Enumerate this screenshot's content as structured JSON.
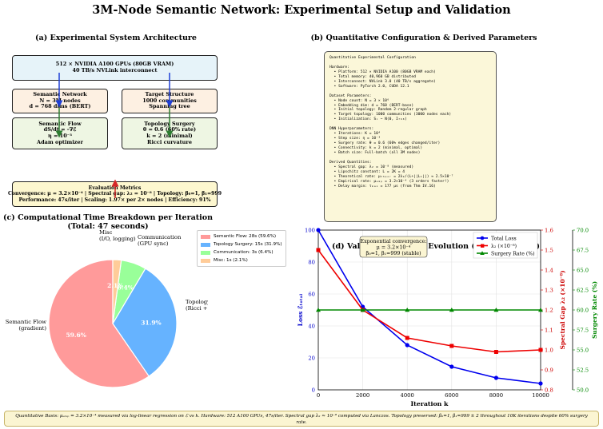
{
  "title": "3M-Node Semantic Network: Experimental Setup and Validation",
  "panel_a": {
    "title": "(a) Experimental System Architecture",
    "hardware": [
      "512 × NVIDIA A100 GPUs (80GB VRAM)",
      "40 TB/s NVLink interconnect"
    ],
    "semantic_network": [
      "Semantic Network",
      "N = 3M nodes",
      "d = 768 dims (BERT)"
    ],
    "target_structure": [
      "Target Structure",
      "1000 communities",
      "Spanning tree"
    ],
    "semantic_flow": [
      "Semantic Flow",
      "dS/dt = -∇ℰ",
      "η = 10⁻³",
      "Adam optimizer"
    ],
    "topology_surgery": [
      "Topology Surgery",
      "θ = 0.6 (60% rate)",
      "k = 2 (minimal)",
      "Ricci curvature"
    ],
    "evaluation": [
      "Evaluation Metrics",
      "Convergence: μ = 3.2×10⁻⁴ | Spectral gap: λ₂ = 10⁻⁸ | Topology: β₀=1, β₁=999",
      "Performance: 47s/iter | Scaling: 1.97× per 2× nodes | Efficiency: 91%"
    ],
    "colors": {
      "hardware": "#e6f3f9",
      "blue_box": "#fdf0e2",
      "green_box": "#eef6e3",
      "eval": "#fdf7cf",
      "blue_arrow": "#1f3fd6",
      "green_arrow": "#2e7d32",
      "red_arrow": "#d62728"
    }
  },
  "panel_b": {
    "title": "(b) Quantitative Configuration & Derived Parameters",
    "lines": [
      "Quantitative Experimental Configuration",
      "",
      "Hardware:",
      "  • Platform: 512 × NVIDIA A100 (80GB VRAM each)",
      "  • Total memory: 40,960 GB distributed",
      "  • Interconnect: NVLink 3.0 (40 TB/s aggregate)",
      "  • Software: PyTorch 2.0, CUDA 12.1",
      "",
      "Dataset Parameters:",
      "  • Node count: N = 3 × 10⁶",
      "  • Embedding dim: d = 768 (BERT-base)",
      "  • Initial topology: Random 2-regular graph",
      "  • Target topology: 1000 communities (3000 nodes each)",
      "  • Initialization: Sᵢ ~ N(0, I₇₆₈)",
      "",
      "DNN Hyperparameters:",
      "  • Iterations: K = 10⁴",
      "  • Step size: η = 10⁻³",
      "  • Surgery rate: θ = 0.6 (60% edges changed/iter)",
      "  • Connectivity: k = 2 (minimal, optimal)",
      "  • Batch size: Full-batch (all 3M nodes)",
      "",
      "Derived Quantities:",
      "  • Spectral gap: λ₂ = 10⁻⁸ (measured)",
      "  • Lipschitz constant: L = 2K = 4",
      "  • Theoretical rate: μₜₕₑₒᵣ = 2λ₂/(L+||L₁||) ≈ 2.5×10⁻⁷",
      "  • Empirical rate: μₑₘₚ = 3.2×10⁻⁴ (3 orders faster!)",
      "  • Delay margin: τₘₐₓ = 177 μs (from Thm IV.16)"
    ]
  },
  "panel_c": {
    "title": "(c) Computational Time Breakdown per Iteration",
    "subtitle": "(Total: 47 seconds)",
    "slices": [
      {
        "label": "Semantic Flow\n(gradient)",
        "pct_label": "59.6%",
        "legend": "Semantic Flow: 28s (59.6%)",
        "value": 28,
        "color": "#ff9a9a"
      },
      {
        "label": "Topology Surgery\n(Ricci + homology)",
        "pct_label": "31.9%",
        "legend": "Topology Surgery: 15s (31.9%)",
        "value": 15,
        "color": "#66b3ff"
      },
      {
        "label": "Communication\n(GPU sync)",
        "pct_label": "6.4%",
        "legend": "Communication: 3s (6.4%)",
        "value": 3,
        "color": "#99ff99"
      },
      {
        "label": "Misc\n(I/O, logging)",
        "pct_label": "2.1%",
        "legend": "Misc: 1s (2.1%)",
        "value": 1,
        "color": "#ffcc99"
      }
    ]
  },
  "panel_d": {
    "title": "(d) Validation Metrics Evolution (10K iterations)",
    "xlabel": "Iteration k",
    "ylabel_left": "Loss ℰₜₒₜₐₗ",
    "ylabel_right1": "Spectral Gap λ₂ (×10⁻⁸)",
    "ylabel_right2": "Surgery Rate (%)",
    "annotation": [
      "Exponential convergence:",
      "μ = 3.2×10⁻⁴",
      "β₀=1, β₁=999 (stable)"
    ],
    "legend": [
      "Total Loss",
      "λ₂ (×10⁻⁸)",
      "Surgery Rate (%)"
    ],
    "x_ticks": [
      "0",
      "2000",
      "4000",
      "6000",
      "8000",
      "10000"
    ],
    "y_left_ticks": [
      "0",
      "20",
      "40",
      "60",
      "80",
      "100"
    ],
    "y_right1_ticks": [
      "0.8",
      "0.9",
      "1.0",
      "1.1",
      "1.2",
      "1.3",
      "1.4",
      "1.5",
      "1.6"
    ],
    "y_right2_ticks": [
      "50.0",
      "52.5",
      "55.0",
      "57.5",
      "60.0",
      "62.5",
      "65.0",
      "67.5",
      "70.0"
    ]
  },
  "chart_data": {
    "type": "line",
    "title": "(d) Validation Metrics Evolution (10K iterations)",
    "xlabel": "Iteration k",
    "x": [
      0,
      2000,
      4000,
      6000,
      8000,
      10000
    ],
    "xlim": [
      0,
      10000
    ],
    "series": [
      {
        "name": "Total Loss",
        "axis": "left",
        "ylim": [
          0,
          100
        ],
        "values": [
          100,
          52,
          28,
          14.5,
          7.5,
          4
        ],
        "color": "#0000ee",
        "marker": "circle"
      },
      {
        "name": "λ₂ (×10⁻⁸)",
        "axis": "right1",
        "ylim": [
          0.8,
          1.6
        ],
        "values": [
          1.5,
          1.2,
          1.06,
          1.02,
          0.99,
          1.0
        ],
        "color": "#ee0000",
        "marker": "square"
      },
      {
        "name": "Surgery Rate (%)",
        "axis": "right2",
        "ylim": [
          50,
          70
        ],
        "values": [
          60,
          60,
          60,
          60,
          60,
          60
        ],
        "color": "#008800",
        "marker": "triangle"
      }
    ],
    "grid": true,
    "legend_position": "top-right"
  },
  "footer": "Quantitative Basis: μₑₘₚ = 3.2×10⁻⁴ measured via log-linear regression on ℰ vs k. Hardware: 512 A100 GPUs, 47s/iter. Spectral gap λ₂ ≈ 10⁻⁸ computed via Lanczos. Topology preserved: β₀=1, β₁=999 ± 2 throughout 10K iterations despite 60% surgery rate."
}
